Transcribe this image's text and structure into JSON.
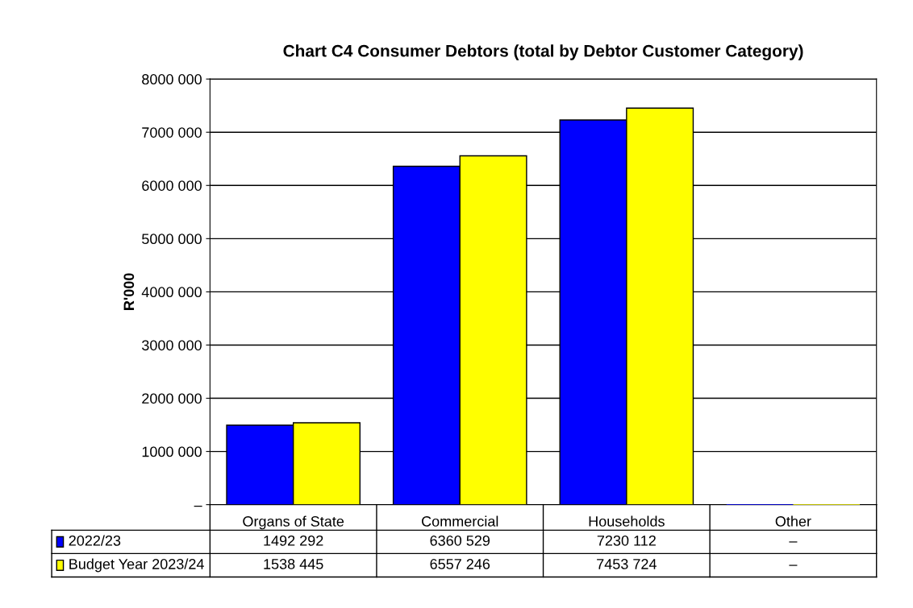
{
  "chart_data": {
    "type": "bar",
    "title": "Chart C4 Consumer Debtors (total by Debtor Customer Category)",
    "ylabel": "R'000",
    "categories": [
      "Organs of State",
      "Commercial",
      "Households",
      "Other"
    ],
    "series": [
      {
        "name": "2022/23",
        "color": "#0000ff",
        "values": [
          1492292,
          6360529,
          7230112,
          0
        ],
        "value_labels": [
          "1492 292",
          "6360 529",
          "7230 112",
          "–"
        ]
      },
      {
        "name": "Budget Year 2023/24",
        "color": "#ffff00",
        "values": [
          1538445,
          6557246,
          7453724,
          0
        ],
        "value_labels": [
          "1538 445",
          "6557 246",
          "7453 724",
          "–"
        ]
      }
    ],
    "ylim": [
      0,
      8000000
    ],
    "yticks": [
      {
        "value": 0,
        "label": "–"
      },
      {
        "value": 1000000,
        "label": "1000 000"
      },
      {
        "value": 2000000,
        "label": "2000 000"
      },
      {
        "value": 3000000,
        "label": "3000 000"
      },
      {
        "value": 4000000,
        "label": "4000 000"
      },
      {
        "value": 5000000,
        "label": "5000 000"
      },
      {
        "value": 6000000,
        "label": "6000 000"
      },
      {
        "value": 7000000,
        "label": "7000 000"
      },
      {
        "value": 8000000,
        "label": "8000 000"
      }
    ],
    "grid": "y",
    "legend": "bottom"
  }
}
